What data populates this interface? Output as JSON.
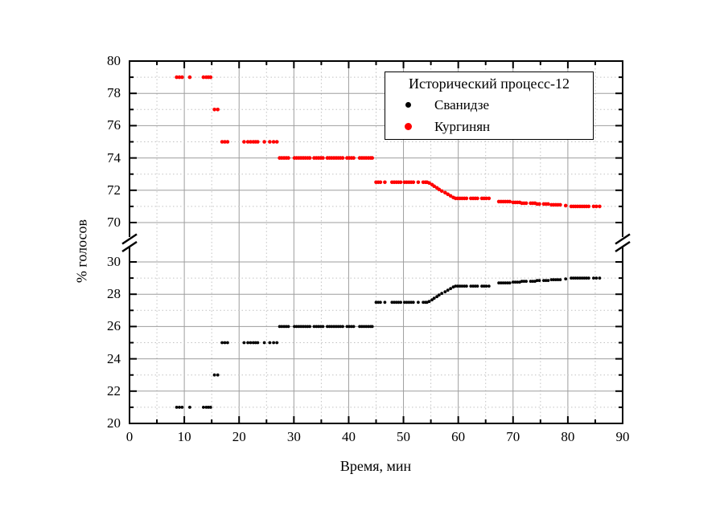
{
  "page": {
    "background": "#ffffff"
  },
  "chart_data": {
    "type": "scatter",
    "title": "",
    "xlabel": "Время, мин",
    "ylabel": "% голосов",
    "x_axis": {
      "min": 0,
      "max": 90,
      "major_tick_step": 10,
      "minor_tick_step": 5,
      "tick_labels": [
        "0",
        "10",
        "20",
        "30",
        "40",
        "50",
        "60",
        "70",
        "80",
        "90"
      ]
    },
    "y_axis": {
      "broken": true,
      "break_between": [
        30,
        70
      ],
      "major_tick_step": 2,
      "minor_tick_step": 1,
      "upper_segment": {
        "min": 70,
        "max": 80,
        "tick_labels": [
          "80",
          "78",
          "76",
          "74",
          "72",
          "70"
        ],
        "tick_values": [
          80,
          78,
          76,
          74,
          72,
          70
        ]
      },
      "lower_segment": {
        "min": 20,
        "max": 30,
        "tick_labels": [
          "30",
          "28",
          "26",
          "24",
          "22",
          "20"
        ],
        "tick_values": [
          30,
          28,
          26,
          24,
          22,
          20
        ]
      }
    },
    "grid": {
      "major_color": "#9e9e9e",
      "minor_color": "#c2c2c2",
      "minor_style": "dotted"
    },
    "legend": {
      "title": "Исторический процесс-12",
      "position": "top-right",
      "items": [
        {
          "label": "Сванидзе",
          "color": "#000000"
        },
        {
          "label": "Кургинян",
          "color": "#ff0000"
        }
      ]
    },
    "frame_color": "#000000",
    "point_columns": [
      "time_min",
      "Сванидзе_pct",
      "Кургинян_pct"
    ],
    "points": [
      [
        8.6,
        21,
        79
      ],
      [
        9.1,
        21,
        79
      ],
      [
        9.6,
        21,
        79
      ],
      [
        11,
        21,
        79
      ],
      [
        13.5,
        21,
        79
      ],
      [
        14,
        21,
        79
      ],
      [
        14.4,
        21,
        79
      ],
      [
        14.8,
        21,
        79
      ],
      [
        15.5,
        23,
        77
      ],
      [
        16.1,
        23,
        77
      ],
      [
        16.9,
        25,
        75
      ],
      [
        17.4,
        25,
        75
      ],
      [
        17.9,
        25,
        75
      ],
      [
        20.9,
        25,
        75
      ],
      [
        21.6,
        25,
        75
      ],
      [
        22.1,
        25,
        75
      ],
      [
        22.6,
        25,
        75
      ],
      [
        23,
        25,
        75
      ],
      [
        23.4,
        25,
        75
      ],
      [
        24.6,
        25,
        75
      ],
      [
        25.6,
        25,
        75
      ],
      [
        26.3,
        25,
        75
      ],
      [
        26.9,
        25,
        75
      ],
      [
        27.4,
        26,
        74
      ],
      [
        27.8,
        26,
        74
      ],
      [
        28.2,
        26,
        74
      ],
      [
        28.6,
        26,
        74
      ],
      [
        29,
        26,
        74
      ],
      [
        30.1,
        26,
        74
      ],
      [
        30.5,
        26,
        74
      ],
      [
        30.9,
        26,
        74
      ],
      [
        31.3,
        26,
        74
      ],
      [
        31.7,
        26,
        74
      ],
      [
        32.1,
        26,
        74
      ],
      [
        32.5,
        26,
        74
      ],
      [
        32.9,
        26,
        74
      ],
      [
        33.7,
        26,
        74
      ],
      [
        34.1,
        26,
        74
      ],
      [
        34.5,
        26,
        74
      ],
      [
        34.9,
        26,
        74
      ],
      [
        35.3,
        26,
        74
      ],
      [
        36.1,
        26,
        74
      ],
      [
        36.5,
        26,
        74
      ],
      [
        36.9,
        26,
        74
      ],
      [
        37.3,
        26,
        74
      ],
      [
        37.7,
        26,
        74
      ],
      [
        38.1,
        26,
        74
      ],
      [
        38.5,
        26,
        74
      ],
      [
        38.9,
        26,
        74
      ],
      [
        39.7,
        26,
        74
      ],
      [
        40.1,
        26,
        74
      ],
      [
        40.5,
        26,
        74
      ],
      [
        40.9,
        26,
        74
      ],
      [
        42,
        26,
        74
      ],
      [
        42.4,
        26,
        74
      ],
      [
        42.8,
        26,
        74
      ],
      [
        43.2,
        26,
        74
      ],
      [
        43.6,
        26,
        74
      ],
      [
        44,
        26,
        74
      ],
      [
        44.3,
        26,
        74
      ],
      [
        45,
        27.5,
        72.5
      ],
      [
        45.4,
        27.5,
        72.5
      ],
      [
        45.8,
        27.5,
        72.5
      ],
      [
        46.6,
        27.5,
        72.5
      ],
      [
        47.9,
        27.5,
        72.5
      ],
      [
        48.3,
        27.5,
        72.5
      ],
      [
        48.7,
        27.5,
        72.5
      ],
      [
        49.1,
        27.5,
        72.5
      ],
      [
        49.5,
        27.5,
        72.5
      ],
      [
        50.2,
        27.5,
        72.5
      ],
      [
        50.6,
        27.5,
        72.5
      ],
      [
        51,
        27.5,
        72.5
      ],
      [
        51.4,
        27.5,
        72.5
      ],
      [
        51.8,
        27.5,
        72.5
      ],
      [
        52.7,
        27.5,
        72.5
      ],
      [
        53.6,
        27.5,
        72.5
      ],
      [
        54,
        27.5,
        72.5
      ],
      [
        54.3,
        27.5,
        72.5
      ],
      [
        54.7,
        27.55,
        72.45
      ],
      [
        55.2,
        27.65,
        72.35
      ],
      [
        55.6,
        27.75,
        72.25
      ],
      [
        56.1,
        27.85,
        72.15
      ],
      [
        56.5,
        27.95,
        72.05
      ],
      [
        57,
        28.05,
        71.95
      ],
      [
        57.6,
        28.15,
        71.85
      ],
      [
        58.1,
        28.25,
        71.75
      ],
      [
        58.6,
        28.35,
        71.65
      ],
      [
        59.1,
        28.45,
        71.55
      ],
      [
        59.5,
        28.5,
        71.5
      ],
      [
        59.9,
        28.5,
        71.5
      ],
      [
        60.3,
        28.5,
        71.5
      ],
      [
        60.7,
        28.5,
        71.5
      ],
      [
        61.1,
        28.5,
        71.5
      ],
      [
        61.5,
        28.5,
        71.5
      ],
      [
        62.3,
        28.5,
        71.5
      ],
      [
        62.7,
        28.5,
        71.5
      ],
      [
        63.1,
        28.5,
        71.5
      ],
      [
        63.5,
        28.5,
        71.5
      ],
      [
        64.3,
        28.5,
        71.5
      ],
      [
        64.7,
        28.5,
        71.5
      ],
      [
        65.1,
        28.5,
        71.5
      ],
      [
        65.6,
        28.5,
        71.5
      ],
      [
        67.4,
        28.7,
        71.3
      ],
      [
        67.8,
        28.7,
        71.3
      ],
      [
        68.2,
        28.7,
        71.3
      ],
      [
        68.6,
        28.7,
        71.3
      ],
      [
        69,
        28.7,
        71.3
      ],
      [
        69.4,
        28.7,
        71.3
      ],
      [
        70,
        28.75,
        71.25
      ],
      [
        70.4,
        28.75,
        71.25
      ],
      [
        70.8,
        28.75,
        71.25
      ],
      [
        71.2,
        28.75,
        71.25
      ],
      [
        71.6,
        28.8,
        71.2
      ],
      [
        72,
        28.8,
        71.2
      ],
      [
        72.4,
        28.8,
        71.2
      ],
      [
        73.2,
        28.8,
        71.2
      ],
      [
        73.6,
        28.8,
        71.2
      ],
      [
        74,
        28.8,
        71.2
      ],
      [
        74.4,
        28.85,
        71.15
      ],
      [
        74.8,
        28.85,
        71.15
      ],
      [
        75.6,
        28.85,
        71.15
      ],
      [
        76,
        28.85,
        71.15
      ],
      [
        76.4,
        28.85,
        71.15
      ],
      [
        77,
        28.9,
        71.1
      ],
      [
        77.4,
        28.9,
        71.1
      ],
      [
        77.8,
        28.9,
        71.1
      ],
      [
        78.2,
        28.9,
        71.1
      ],
      [
        78.6,
        28.9,
        71.1
      ],
      [
        79.6,
        28.95,
        71.05
      ],
      [
        80.6,
        29,
        71
      ],
      [
        81,
        29,
        71
      ],
      [
        81.4,
        29,
        71
      ],
      [
        81.8,
        29,
        71
      ],
      [
        82.2,
        29,
        71
      ],
      [
        82.6,
        29,
        71
      ],
      [
        83,
        29,
        71
      ],
      [
        83.4,
        29,
        71
      ],
      [
        83.8,
        29,
        71
      ],
      [
        84.7,
        29,
        71
      ],
      [
        85.2,
        29,
        71
      ],
      [
        85.8,
        29,
        71
      ]
    ]
  }
}
